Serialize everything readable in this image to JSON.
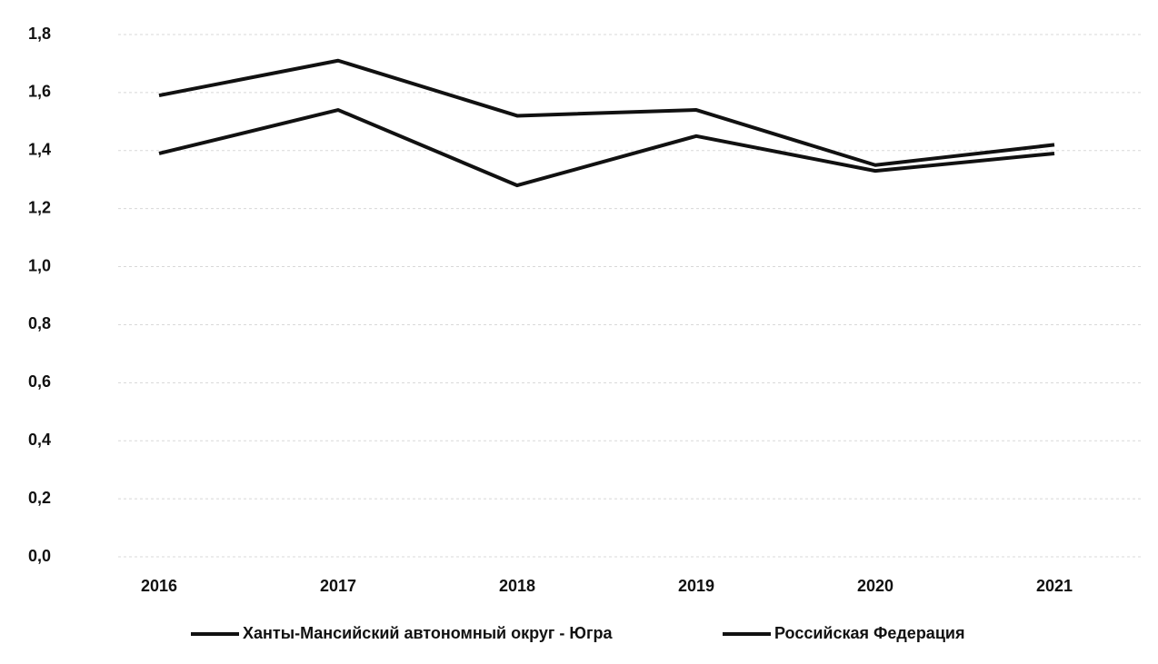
{
  "chart_data": {
    "type": "line",
    "categories": [
      "2016",
      "2017",
      "2018",
      "2019",
      "2020",
      "2021"
    ],
    "series": [
      {
        "name": "Ханты-Мансийский автономный округ - Югра",
        "color": "#111111",
        "values": [
          1.59,
          1.71,
          1.52,
          1.54,
          1.35,
          1.42
        ]
      },
      {
        "name": "Российская Федерация",
        "color": "#111111",
        "values": [
          1.39,
          1.54,
          1.28,
          1.45,
          1.33,
          1.39
        ]
      }
    ],
    "ylim": [
      0,
      1.8
    ],
    "yticks": [
      {
        "value": 0,
        "label": "0,0"
      },
      {
        "value": 0.2,
        "label": "0,2"
      },
      {
        "value": 0.4,
        "label": "0,4"
      },
      {
        "value": 0.6,
        "label": "0,6"
      },
      {
        "value": 0.8,
        "label": "0,8"
      },
      {
        "value": 1.0,
        "label": "1,0"
      },
      {
        "value": 1.2,
        "label": "1,2"
      },
      {
        "value": 1.4,
        "label": "1,4"
      },
      {
        "value": 1.6,
        "label": "1,6"
      },
      {
        "value": 1.8,
        "label": "1,8"
      }
    ],
    "grid": true,
    "legend": "bottom"
  }
}
